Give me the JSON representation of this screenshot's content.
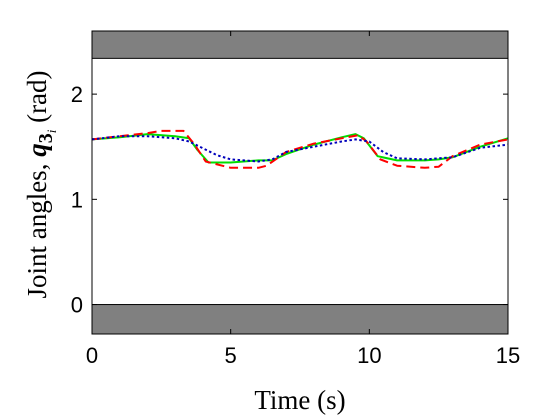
{
  "chart_data": {
    "type": "line",
    "xlabel": "Time (s)",
    "ylabel": "Joint angles, ",
    "ylabel_symbol": "q",
    "ylabel_subscript": "3",
    "ylabel_subsubscript": "i",
    "ylabel_unit": " (rad)",
    "xlim": [
      0,
      15
    ],
    "ylim": [
      -0.28,
      2.6
    ],
    "xticks": [
      0,
      5,
      10,
      15
    ],
    "xtick_labels": [
      "0",
      "5",
      "10",
      "15"
    ],
    "yticks": [
      0,
      1,
      2
    ],
    "ytick_labels": [
      "0",
      "1",
      "2"
    ],
    "grid": false,
    "bounds": [
      {
        "y0": 2.34,
        "y1": 2.6,
        "color": "#808080"
      },
      {
        "y0": -0.28,
        "y1": 0.0,
        "color": "#808080"
      }
    ],
    "series": [
      {
        "color": "#00dd00",
        "dash": "solid",
        "x": [
          0,
          1,
          2,
          3,
          3.5,
          3.8,
          4.2,
          5,
          6,
          6.5,
          7,
          8,
          9,
          9.5,
          9.8,
          10.3,
          11,
          12,
          12.5,
          13,
          14,
          15
        ],
        "y": [
          1.57,
          1.59,
          1.62,
          1.6,
          1.58,
          1.47,
          1.35,
          1.35,
          1.37,
          1.37,
          1.43,
          1.52,
          1.59,
          1.62,
          1.58,
          1.41,
          1.37,
          1.37,
          1.38,
          1.4,
          1.5,
          1.58
        ]
      },
      {
        "color": "#ff0000",
        "dash": "dashed",
        "x": [
          0,
          1,
          2,
          2.5,
          3,
          3.3,
          3.7,
          4.1,
          5,
          6,
          6.3,
          7,
          8,
          9,
          9.6,
          9.9,
          10.4,
          11,
          12,
          12.5,
          13,
          14,
          15
        ],
        "y": [
          1.57,
          1.6,
          1.63,
          1.65,
          1.65,
          1.65,
          1.52,
          1.36,
          1.3,
          1.3,
          1.32,
          1.45,
          1.53,
          1.58,
          1.61,
          1.55,
          1.38,
          1.32,
          1.3,
          1.31,
          1.41,
          1.52,
          1.57
        ]
      },
      {
        "color": "#0000bb",
        "dash": "dotted",
        "x": [
          0,
          1,
          2,
          3,
          3.5,
          4.5,
          5,
          6,
          6.5,
          7,
          8,
          9,
          9.5,
          10,
          10.5,
          11,
          12,
          13,
          14,
          15
        ],
        "y": [
          1.57,
          1.6,
          1.6,
          1.58,
          1.55,
          1.42,
          1.38,
          1.36,
          1.38,
          1.45,
          1.5,
          1.55,
          1.57,
          1.55,
          1.45,
          1.39,
          1.38,
          1.4,
          1.49,
          1.52
        ]
      }
    ]
  }
}
